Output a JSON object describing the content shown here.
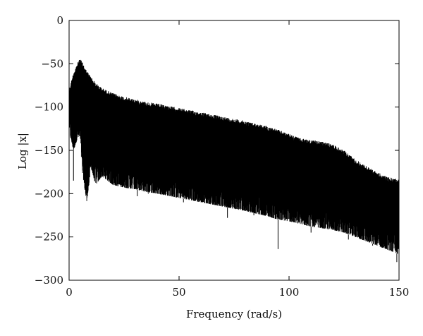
{
  "chart_data": {
    "type": "line",
    "title": "",
    "xlabel": "Frequency (rad/s)",
    "ylabel": "Log |x|",
    "xlim": [
      0,
      150
    ],
    "ylim": [
      -300,
      0
    ],
    "xticks": [
      0,
      50,
      100,
      150
    ],
    "xtick_labels": [
      "0",
      "50",
      "100",
      "150"
    ],
    "yticks": [
      -300,
      -250,
      -200,
      -150,
      -100,
      -50,
      0
    ],
    "ytick_labels": [
      "−300",
      "−250",
      "−200",
      "−150",
      "−100",
      "−50",
      "0"
    ],
    "grid": false,
    "legend": "none",
    "series_color": "#000000",
    "series": [
      {
        "envelope_x": [
          0,
          2,
          4,
          5,
          6,
          8,
          10,
          12,
          15,
          20,
          25,
          30,
          35,
          40,
          50,
          60,
          70,
          80,
          90,
          95,
          100,
          105,
          110,
          115,
          120,
          125,
          130,
          135,
          140,
          145,
          150
        ],
        "upper": [
          -80,
          -60,
          -48,
          -44,
          -48,
          -58,
          -65,
          -72,
          -78,
          -84,
          -88,
          -91,
          -94,
          -96,
          -101,
          -106,
          -111,
          -116,
          -122,
          -126,
          -131,
          -136,
          -138,
          -140,
          -143,
          -150,
          -160,
          -168,
          -175,
          -181,
          -183
        ],
        "lower": [
          -128,
          -150,
          -135,
          -135,
          -175,
          -210,
          -170,
          -190,
          -180,
          -190,
          -193,
          -195,
          -198,
          -200,
          -205,
          -210,
          -215,
          -220,
          -226,
          -230,
          -232,
          -235,
          -238,
          -240,
          -242,
          -245,
          -250,
          -255,
          -260,
          -265,
          -270
        ],
        "dips": [
          [
            2,
            -185
          ],
          [
            9,
            -178
          ],
          [
            31,
            -203
          ],
          [
            36,
            -200
          ],
          [
            52,
            -210
          ],
          [
            72,
            -228
          ],
          [
            84,
            -225
          ],
          [
            95,
            -264
          ],
          [
            110,
            -245
          ],
          [
            127,
            -253
          ],
          [
            138,
            -260
          ],
          [
            149,
            -279
          ]
        ]
      }
    ]
  }
}
